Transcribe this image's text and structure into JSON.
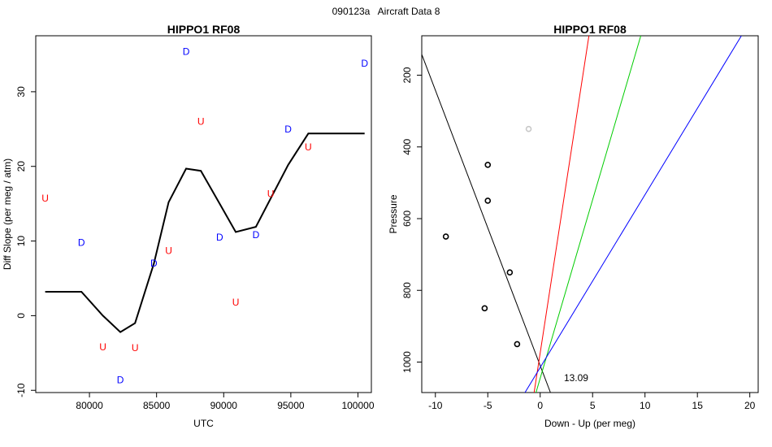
{
  "page": {
    "title": "090123a   Aircraft Data 8"
  },
  "chart_data": [
    {
      "type": "line",
      "title": "HIPPO1 RF08",
      "xlabel": "UTC",
      "ylabel": "Diff Slope (per meg / atm)",
      "xlim": [
        76000,
        101000
      ],
      "ylim": [
        -10.3,
        37.5
      ],
      "xticks": [
        80000,
        85000,
        90000,
        95000,
        100000
      ],
      "yticks": [
        -10,
        0,
        10,
        20,
        30
      ],
      "grid": false,
      "line": {
        "color": "#000000",
        "x": [
          76700,
          79400,
          81000,
          82300,
          83400,
          84800,
          85900,
          87200,
          88300,
          89700,
          90900,
          92400,
          94800,
          96300,
          100500
        ],
        "y": [
          3.2,
          3.2,
          0.0,
          -2.2,
          -1.0,
          7.0,
          15.2,
          19.7,
          19.4,
          15.0,
          11.2,
          11.9,
          20.2,
          24.4,
          24.4
        ]
      },
      "markers": [
        {
          "label": "U",
          "x": 76700,
          "y": 15.7,
          "color": "#ff0000"
        },
        {
          "label": "D",
          "x": 79400,
          "y": 9.8,
          "color": "#0000ff"
        },
        {
          "label": "U",
          "x": 81000,
          "y": -4.2,
          "color": "#ff0000"
        },
        {
          "label": "D",
          "x": 82300,
          "y": -8.6,
          "color": "#0000ff"
        },
        {
          "label": "U",
          "x": 83400,
          "y": -4.3,
          "color": "#ff0000"
        },
        {
          "label": "D",
          "x": 84800,
          "y": 7.0,
          "color": "#0000ff"
        },
        {
          "label": "U",
          "x": 85900,
          "y": 8.7,
          "color": "#ff0000"
        },
        {
          "label": "D",
          "x": 87200,
          "y": 35.4,
          "color": "#0000ff"
        },
        {
          "label": "U",
          "x": 88300,
          "y": 26.0,
          "color": "#ff0000"
        },
        {
          "label": "D",
          "x": 89700,
          "y": 10.5,
          "color": "#0000ff"
        },
        {
          "label": "U",
          "x": 90900,
          "y": 1.8,
          "color": "#ff0000"
        },
        {
          "label": "D",
          "x": 92400,
          "y": 10.8,
          "color": "#0000ff"
        },
        {
          "label": "U",
          "x": 93500,
          "y": 16.3,
          "color": "#ff0000"
        },
        {
          "label": "D",
          "x": 94800,
          "y": 25.0,
          "color": "#0000ff"
        },
        {
          "label": "U",
          "x": 96300,
          "y": 22.6,
          "color": "#ff0000"
        },
        {
          "label": "D",
          "x": 100500,
          "y": 33.8,
          "color": "#0000ff"
        }
      ]
    },
    {
      "type": "scatter",
      "title": "HIPPO1 RF08",
      "xlabel": "Down - Up (per meg)",
      "ylabel": "Pressure",
      "xlim": [
        -11.3,
        20.8
      ],
      "ylim": [
        1085,
        90
      ],
      "y_reversed": true,
      "xticks": [
        -10,
        -5,
        0,
        5,
        10,
        15,
        20
      ],
      "yticks": [
        200,
        400,
        600,
        800,
        1000
      ],
      "grid": false,
      "annotation": "13.09",
      "annotation_pos": {
        "x": 2.5,
        "y": 1040
      },
      "points": [
        {
          "x": -1.1,
          "y": 350,
          "color": "#c8c8c8"
        },
        {
          "x": -5.0,
          "y": 450,
          "color": "#000000"
        },
        {
          "x": -5.0,
          "y": 550,
          "color": "#000000"
        },
        {
          "x": -9.0,
          "y": 650,
          "color": "#000000"
        },
        {
          "x": -2.9,
          "y": 750,
          "color": "#000000"
        },
        {
          "x": -5.3,
          "y": 850,
          "color": "#000000"
        },
        {
          "x": -2.2,
          "y": 950,
          "color": "#000000"
        }
      ],
      "lines": [
        {
          "color": "#000000",
          "x1": -11.3,
          "y1": 142,
          "x2": 0.98,
          "y2": 1085
        },
        {
          "color": "#ff0000",
          "x1": -0.58,
          "y1": 1085,
          "x2": 4.65,
          "y2": 90
        },
        {
          "color": "#00cc00",
          "x1": -0.4,
          "y1": 1085,
          "x2": 9.6,
          "y2": 90
        },
        {
          "color": "#0000ff",
          "x1": -1.45,
          "y1": 1085,
          "x2": 19.2,
          "y2": 90
        }
      ]
    }
  ]
}
